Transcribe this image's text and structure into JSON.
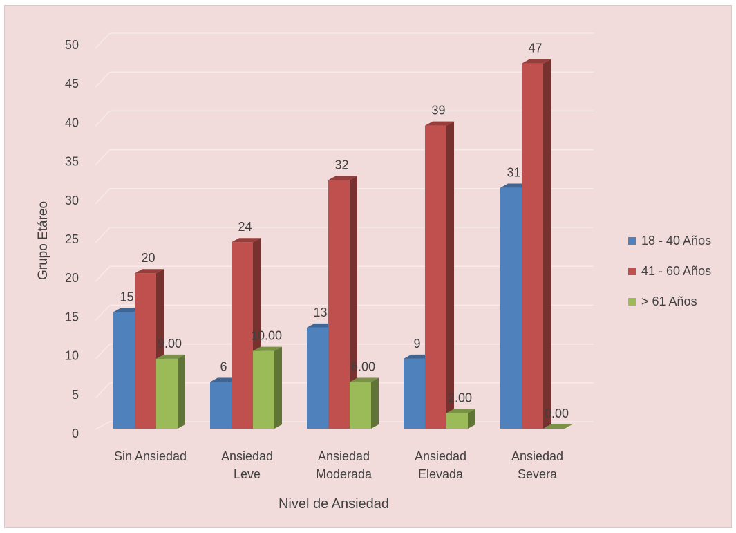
{
  "chart_data": {
    "type": "bar",
    "title": "",
    "xlabel": "Nivel de Ansiedad",
    "ylabel": "Grupo Etáreo",
    "ylim": [
      0,
      50
    ],
    "yticks": [
      0,
      5,
      10,
      15,
      20,
      25,
      30,
      35,
      40,
      45,
      50
    ],
    "grid": true,
    "legend_position": "right",
    "categories": [
      [
        "Sin Ansiedad"
      ],
      [
        "Ansiedad",
        "Leve"
      ],
      [
        "Ansiedad",
        "Moderada"
      ],
      [
        "Ansiedad",
        "Elevada"
      ],
      [
        "Ansiedad",
        "Severa"
      ]
    ],
    "series": [
      {
        "name": "18 - 40 Años",
        "color": "#4f81bd",
        "values": [
          15,
          6,
          13,
          9,
          31
        ],
        "labels": [
          "15",
          "6",
          "13",
          "9",
          "31"
        ]
      },
      {
        "name": "41 - 60 Años",
        "color": "#c0504d",
        "values": [
          20,
          24,
          32,
          39,
          47
        ],
        "labels": [
          "20",
          "24",
          "32",
          "39",
          "47"
        ]
      },
      {
        "name": "> 61 Años",
        "color": "#9bbb59",
        "values": [
          9,
          10,
          6,
          2,
          0
        ],
        "labels": [
          "9.00",
          "10.00",
          "6.00",
          "2.00",
          "0.00"
        ]
      }
    ],
    "colors": {
      "background": "#f2dcdb",
      "gridline": "#f6eaea",
      "text": "#404040"
    }
  }
}
